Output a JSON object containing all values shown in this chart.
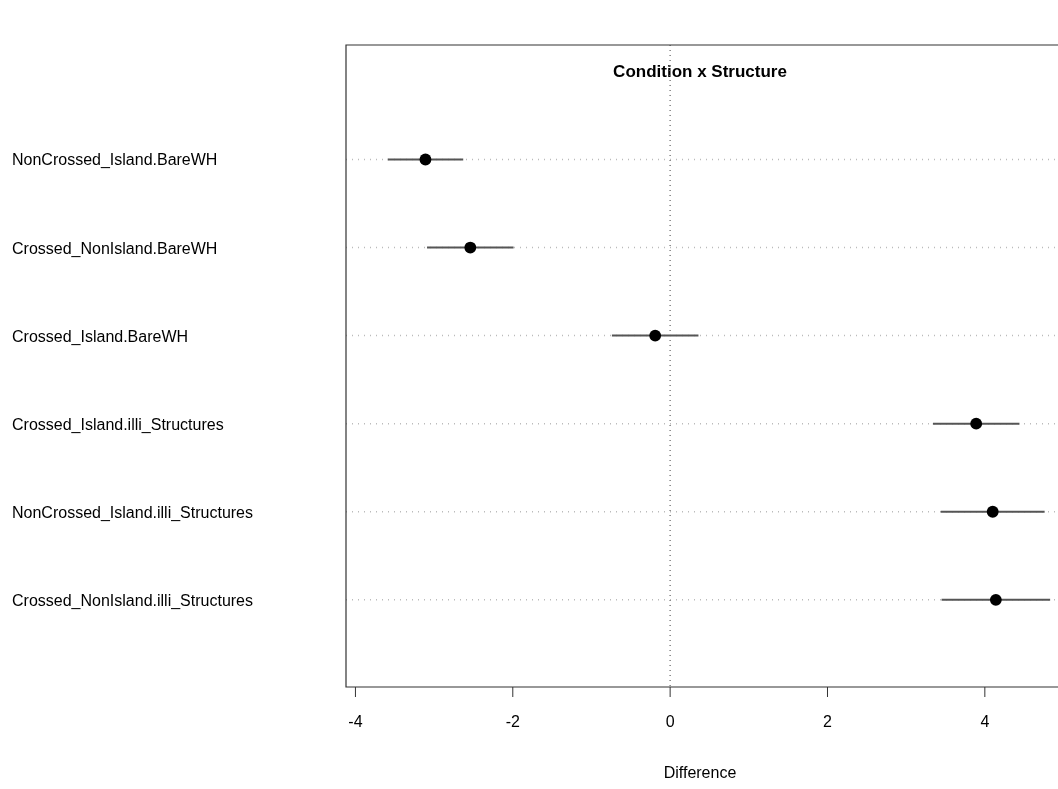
{
  "chart_data": {
    "type": "scatter",
    "title": "Condition x Structure",
    "xlabel": "Difference",
    "orientation": "horizontal",
    "categories": [
      "NonCrossed_Island.BareWH",
      "Crossed_NonIsland.BareWH",
      "Crossed_Island.BareWH",
      "Crossed_Island.illi_Structures",
      "NonCrossed_Island.illi_Structures",
      "Crossed_NonIsland.illi_Structures"
    ],
    "values": [
      -3.11,
      -2.54,
      -0.19,
      3.89,
      4.1,
      4.14
    ],
    "errors": [
      0.48,
      0.55,
      0.55,
      0.55,
      0.66,
      0.69
    ],
    "color": "#000000",
    "marker": "circle",
    "grid": "y",
    "xlim": [
      -4.12,
      4.93
    ],
    "xticks": [
      -4,
      -2,
      0,
      2,
      4
    ],
    "ref_lines": [
      {
        "axis": "x",
        "value": 0,
        "line_style": "dotted",
        "color": "#808080"
      }
    ]
  }
}
